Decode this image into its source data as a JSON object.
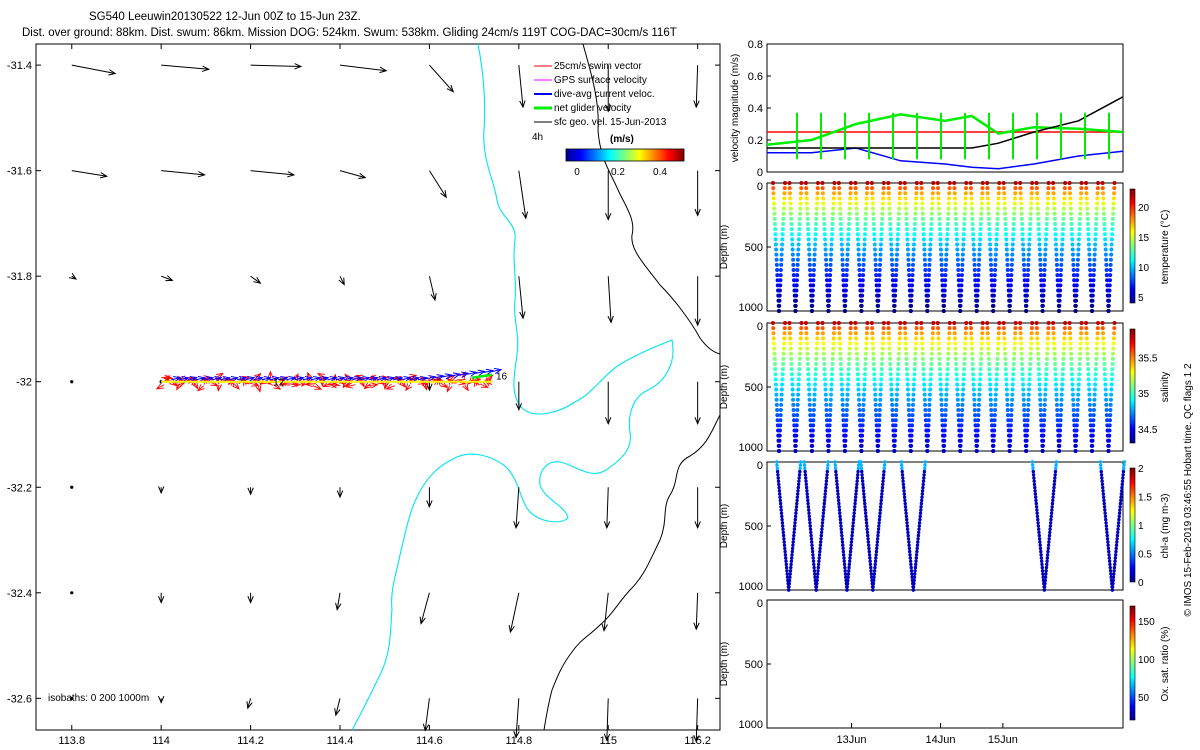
{
  "title": {
    "line1": "SG540 Leeuwin20130522 12-Jun 00Z to 15-Jun 23Z.",
    "line2": "Dist. over ground: 88km. Dist. swum: 86km. Mission DOG: 524km. Swum: 538km. Gliding 24cm/s 119T COG-DAC=30cm/s 116T"
  },
  "side_note": "© IMOS 15-Feb-2019 03:46:55 Hobart time. QC flags 1  2",
  "colors": {
    "vector": "#000000",
    "isobath_shallow": "#00e5ee",
    "isobath_deep": "#000000",
    "swim": "#ff0000",
    "gps": "#ff00ff",
    "dac": "#0000ff",
    "net": "#00ee00"
  },
  "chart_data": [
    {
      "type": "scatter",
      "name": "track map",
      "xlabel": "",
      "ylabel": "",
      "xlim": [
        113.72,
        115.25
      ],
      "ylim": [
        -32.66,
        -31.36
      ],
      "xticks": [
        "113.8",
        "114",
        "114.2",
        "114.4",
        "114.6",
        "114.8",
        "115",
        "115.2"
      ],
      "yticks": [
        "-31.4",
        "-31.6",
        "-31.8",
        "-32",
        "-32.2",
        "-32.4",
        "-32.6"
      ],
      "legend": {
        "entries": [
          "25cm/s swim vector",
          "GPS surface velocity",
          "dive-avg current veloc.",
          "net glider velocity",
          "sfc geo. vel. 15-Jun-2013"
        ],
        "scale_label": "4h",
        "colorbar_label": "(m/s)",
        "colorbar_ticks": [
          "0",
          "0.2",
          "0.4"
        ]
      },
      "isobaths_label": "isobaths: 0   200  1000m",
      "track": {
        "lon_start": 114.0,
        "lon_end": 114.74,
        "lat": -32.0,
        "day_labels": [
          "12",
          "16"
        ]
      },
      "sfc_vectors": {
        "lons": [
          113.8,
          114.0,
          114.2,
          114.4,
          114.6,
          114.8,
          115.0,
          115.2
        ],
        "lats": [
          -31.4,
          -31.6,
          -31.8,
          -32.0,
          -32.2,
          -32.4,
          -32.6
        ],
        "u": [
          [
            0.31,
            0.34,
            0.36,
            0.33,
            0.17,
            0.03,
            0.0,
            -0.01
          ],
          [
            0.25,
            0.31,
            0.31,
            0.18,
            0.12,
            0.05,
            0.0,
            0.0
          ],
          [
            0.03,
            0.08,
            0.07,
            0.03,
            0.04,
            0.03,
            0.02,
            0.0
          ],
          [
            0.0,
            0.0,
            0.0,
            0.0,
            0.0,
            0.0,
            0.0,
            0.0
          ],
          [
            -0.01,
            0.0,
            0.0,
            0.0,
            0.0,
            -0.02,
            -0.01,
            0.0
          ],
          [
            -0.01,
            0.0,
            0.0,
            -0.02,
            -0.06,
            -0.06,
            -0.03,
            -0.01
          ],
          [
            0.0,
            0.0,
            -0.02,
            -0.03,
            -0.03,
            -0.02,
            -0.01,
            -0.01
          ]
        ],
        "v": [
          [
            -0.06,
            -0.03,
            -0.01,
            -0.04,
            -0.19,
            -0.3,
            -0.33,
            -0.3
          ],
          [
            -0.04,
            -0.03,
            -0.03,
            -0.05,
            -0.19,
            -0.34,
            -0.35,
            -0.32
          ],
          [
            -0.02,
            -0.03,
            -0.05,
            -0.06,
            -0.17,
            -0.3,
            -0.33,
            -0.35
          ],
          [
            0.0,
            0.0,
            0.0,
            0.0,
            -0.06,
            -0.2,
            -0.3,
            -0.3
          ],
          [
            0.0,
            -0.04,
            -0.05,
            -0.07,
            -0.14,
            -0.29,
            -0.29,
            -0.29
          ],
          [
            0.0,
            -0.07,
            -0.07,
            -0.12,
            -0.22,
            -0.28,
            -0.27,
            -0.26
          ],
          [
            0.0,
            -0.03,
            -0.07,
            -0.12,
            -0.23,
            -0.28,
            -0.3,
            -0.31
          ]
        ]
      }
    },
    {
      "type": "line",
      "name": "velocity",
      "ylabel": "velocity magnitude (m/s)",
      "ylim": [
        0,
        0.8
      ],
      "yticks": [
        "0",
        "0.2",
        "0.4",
        "0.6",
        "0.8"
      ],
      "x": [
        0,
        0.5,
        1,
        1.5,
        2,
        2.3,
        2.6,
        3,
        3.5,
        4
      ],
      "series": [
        {
          "name": "swim",
          "color": "#ff0000",
          "values": [
            0.25,
            0.25,
            0.25,
            0.25,
            0.25,
            0.25,
            0.25,
            0.25,
            0.25,
            0.25
          ]
        },
        {
          "name": "net glider",
          "color": "#00ee00",
          "values": [
            0.17,
            0.2,
            0.3,
            0.36,
            0.32,
            0.35,
            0.24,
            0.28,
            0.27,
            0.25
          ]
        },
        {
          "name": "dive-avg current",
          "color": "#0000ff",
          "values": [
            0.12,
            0.12,
            0.15,
            0.07,
            0.05,
            0.03,
            0.02,
            0.05,
            0.1,
            0.13
          ]
        },
        {
          "name": "sfc geo",
          "color": "#000000",
          "values": [
            0.15,
            0.15,
            0.15,
            0.15,
            0.15,
            0.15,
            0.18,
            0.25,
            0.32,
            0.47
          ]
        }
      ]
    },
    {
      "type": "scatter",
      "name": "temperature section",
      "ylabel": "Depth (m)",
      "yticks": [
        "0",
        "500",
        "1000"
      ],
      "ylim": [
        1000,
        0
      ],
      "colorbar_label": "temperature (°C)",
      "colorbar_ticks": [
        "5",
        "10",
        "15",
        "20"
      ],
      "dives": 21,
      "max_depth": 1000,
      "surface_value": 22,
      "deep_value": 4
    },
    {
      "type": "scatter",
      "name": "salinity section",
      "ylabel": "Depth (m)",
      "yticks": [
        "0",
        "500",
        "1000"
      ],
      "ylim": [
        1000,
        0
      ],
      "colorbar_label": "salinity",
      "colorbar_ticks": [
        "34.5",
        "35",
        "35.5"
      ],
      "dives": 21,
      "max_depth": 1000,
      "surface_value": 35.8,
      "deep_value": 34.4
    },
    {
      "type": "scatter",
      "name": "chlorophyll section",
      "ylabel": "Depth (m)",
      "yticks": [
        "0",
        "500",
        "1000"
      ],
      "ylim": [
        1000,
        0
      ],
      "colorbar_label": "chl-a (mg m-3)",
      "colorbar_ticks": [
        "0",
        "0.5",
        "1",
        "1.5",
        "2"
      ],
      "dive_positions": [
        0.3,
        1.15,
        2.1,
        2.9,
        4.15,
        8.2,
        10.3
      ],
      "max_depth": 1000,
      "value": 0.05
    },
    {
      "type": "scatter",
      "name": "oxygen section",
      "ylabel": "Depth (m)",
      "yticks": [
        "0",
        "500",
        "1000"
      ],
      "ylim": [
        1000,
        0
      ],
      "colorbar_label": "Ox. sat. ratio (%)",
      "colorbar_ticks": [
        "50",
        "100",
        "150"
      ],
      "xticks": [
        "13Jun",
        "14Jun",
        "15Jun"
      ],
      "values": []
    }
  ]
}
